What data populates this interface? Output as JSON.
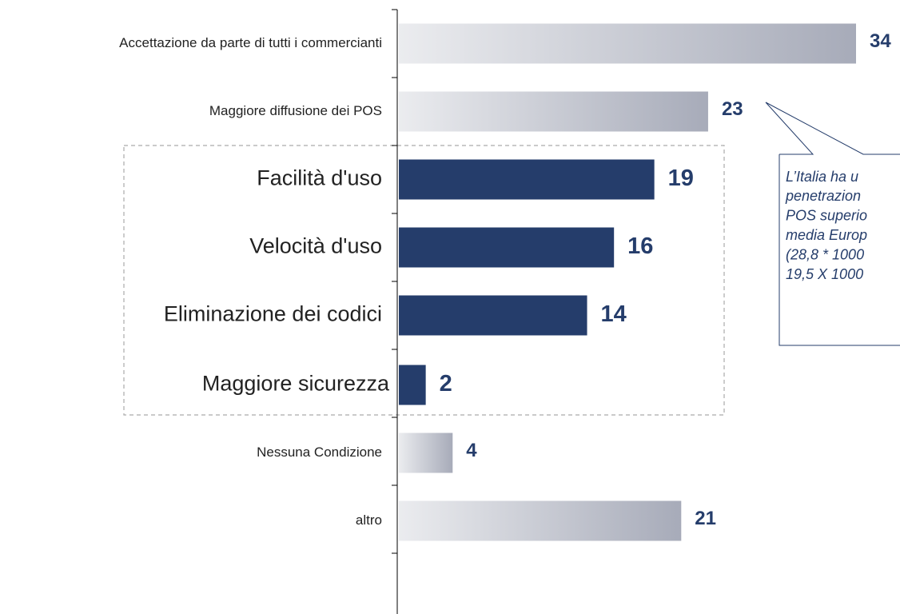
{
  "chart_data": {
    "type": "hbar",
    "categories": [
      "Accettazione da parte di tutti i commercianti",
      "Maggiore diffusione dei POS",
      "Facilità d'uso",
      "Velocità d'uso",
      "Eliminazione dei codici",
      "Maggiore sicurezza",
      "Nessuna Condizione",
      "altro"
    ],
    "values": [
      34,
      23,
      19,
      16,
      14,
      2,
      4,
      21
    ],
    "colors": [
      "#a7abb9",
      "#a7abb9",
      "#253d6b",
      "#253d6b",
      "#253d6b",
      "#253d6b",
      "#a7abb9",
      "#a7abb9"
    ],
    "xlim": [
      0,
      34
    ],
    "annotation": [
      "L’Italia ha u",
      "penetrazion",
      "POS superio",
      "media Europ",
      "(28,8 * 1000",
      "19,5 X 1000"
    ]
  }
}
